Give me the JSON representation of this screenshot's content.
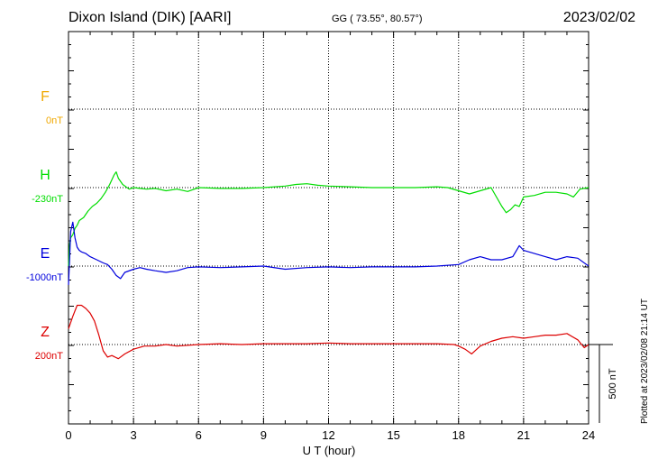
{
  "header": {
    "station": "Dixon Island (DIK)  [AARI]",
    "coords": "GG ( 73.55°,  80.57°)",
    "date": "2023/02/02"
  },
  "footer": {
    "plotted": "Plotted at 2023/02/08 21:14 UT"
  },
  "chart_data": {
    "type": "line",
    "xlabel": "U T (hour)",
    "xlim": [
      0,
      24
    ],
    "xticks": [
      0,
      3,
      6,
      9,
      12,
      15,
      18,
      21,
      24
    ],
    "scale_bar_label": "500 nT",
    "scale_bar_nT": 500,
    "colors": {
      "F": "#f0a800",
      "H": "#00dd00",
      "E": "#0000dd",
      "Z": "#dd0000"
    },
    "series": [
      {
        "name": "F",
        "baseline": "0nT",
        "values": []
      },
      {
        "name": "H",
        "baseline": "-230nT",
        "x": [
          0,
          0.05,
          0.1,
          0.2,
          0.3,
          0.4,
          0.5,
          0.7,
          0.9,
          1.1,
          1.3,
          1.5,
          1.7,
          1.9,
          2.1,
          2.2,
          2.3,
          2.5,
          2.8,
          3,
          3.3,
          3.6,
          4,
          4.5,
          5,
          5.5,
          6,
          7,
          8,
          9,
          10,
          10.5,
          11,
          11.5,
          12,
          13,
          14,
          15,
          16,
          17,
          17.5,
          18,
          18.5,
          19,
          19.5,
          20,
          20.2,
          20.4,
          20.6,
          20.8,
          21,
          21.5,
          22,
          22.5,
          23,
          23.3,
          23.6,
          24
        ],
        "values": [
          -500,
          -360,
          -320,
          -300,
          -260,
          -240,
          -210,
          -190,
          -150,
          -120,
          -100,
          -70,
          -30,
          20,
          80,
          100,
          60,
          20,
          -10,
          0,
          -5,
          -10,
          -5,
          -20,
          -10,
          -25,
          0,
          -5,
          -5,
          0,
          10,
          20,
          25,
          15,
          10,
          5,
          0,
          0,
          0,
          5,
          0,
          -20,
          -40,
          -20,
          0,
          -120,
          -160,
          -140,
          -110,
          -120,
          -60,
          -50,
          -30,
          -30,
          -40,
          -60,
          -10,
          0
        ]
      },
      {
        "name": "E",
        "baseline": "-1000nT",
        "x": [
          0,
          0.05,
          0.1,
          0.2,
          0.3,
          0.4,
          0.5,
          0.6,
          0.8,
          1,
          1.3,
          1.6,
          1.8,
          2,
          2.2,
          2.4,
          2.6,
          3,
          3.3,
          3.6,
          4,
          4.5,
          5,
          5.5,
          6,
          7,
          8,
          9,
          10,
          11,
          12,
          13,
          14,
          15,
          16,
          17,
          18,
          18.5,
          19,
          19.5,
          20,
          20.5,
          20.8,
          21,
          21.5,
          22,
          22.5,
          23,
          23.5,
          24
        ],
        "values": [
          -120,
          40,
          220,
          280,
          180,
          120,
          100,
          90,
          80,
          60,
          40,
          20,
          10,
          -20,
          -60,
          -80,
          -40,
          -20,
          -10,
          -20,
          -30,
          -40,
          -30,
          -10,
          -5,
          -10,
          -5,
          0,
          -20,
          -10,
          -5,
          -10,
          -5,
          -5,
          -5,
          0,
          10,
          40,
          60,
          40,
          40,
          60,
          130,
          100,
          80,
          60,
          40,
          60,
          50,
          0
        ]
      },
      {
        "name": "Z",
        "baseline": "200nT",
        "x": [
          0,
          0.2,
          0.4,
          0.6,
          0.8,
          1,
          1.2,
          1.4,
          1.6,
          1.8,
          2,
          2.3,
          2.6,
          3,
          3.5,
          4,
          4.5,
          5,
          6,
          7,
          8,
          9,
          10,
          11,
          12,
          13,
          14,
          15,
          16,
          17,
          17.8,
          18,
          18.3,
          18.6,
          19,
          19.5,
          20,
          20.5,
          21,
          21.5,
          22,
          22.5,
          23,
          23.5,
          23.8,
          24
        ],
        "values": [
          100,
          180,
          250,
          250,
          230,
          200,
          150,
          60,
          -40,
          -80,
          -70,
          -90,
          -60,
          -30,
          -10,
          -10,
          0,
          -10,
          0,
          5,
          0,
          5,
          5,
          5,
          10,
          5,
          5,
          5,
          5,
          5,
          0,
          -10,
          -30,
          -60,
          -10,
          20,
          40,
          50,
          40,
          50,
          60,
          60,
          70,
          30,
          -20,
          0
        ]
      }
    ]
  }
}
